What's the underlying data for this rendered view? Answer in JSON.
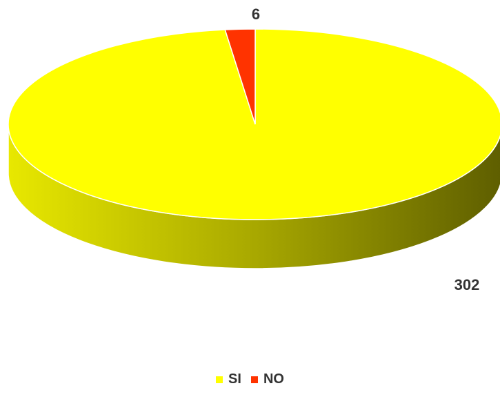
{
  "chart_data": {
    "type": "pie",
    "title": "",
    "categories": [
      "SI",
      "NO"
    ],
    "values": [
      302,
      6
    ],
    "colors": [
      "#FFFF00",
      "#FF3300"
    ],
    "labels": [
      "302",
      "6"
    ],
    "legend_position": "bottom",
    "style": "3d"
  }
}
